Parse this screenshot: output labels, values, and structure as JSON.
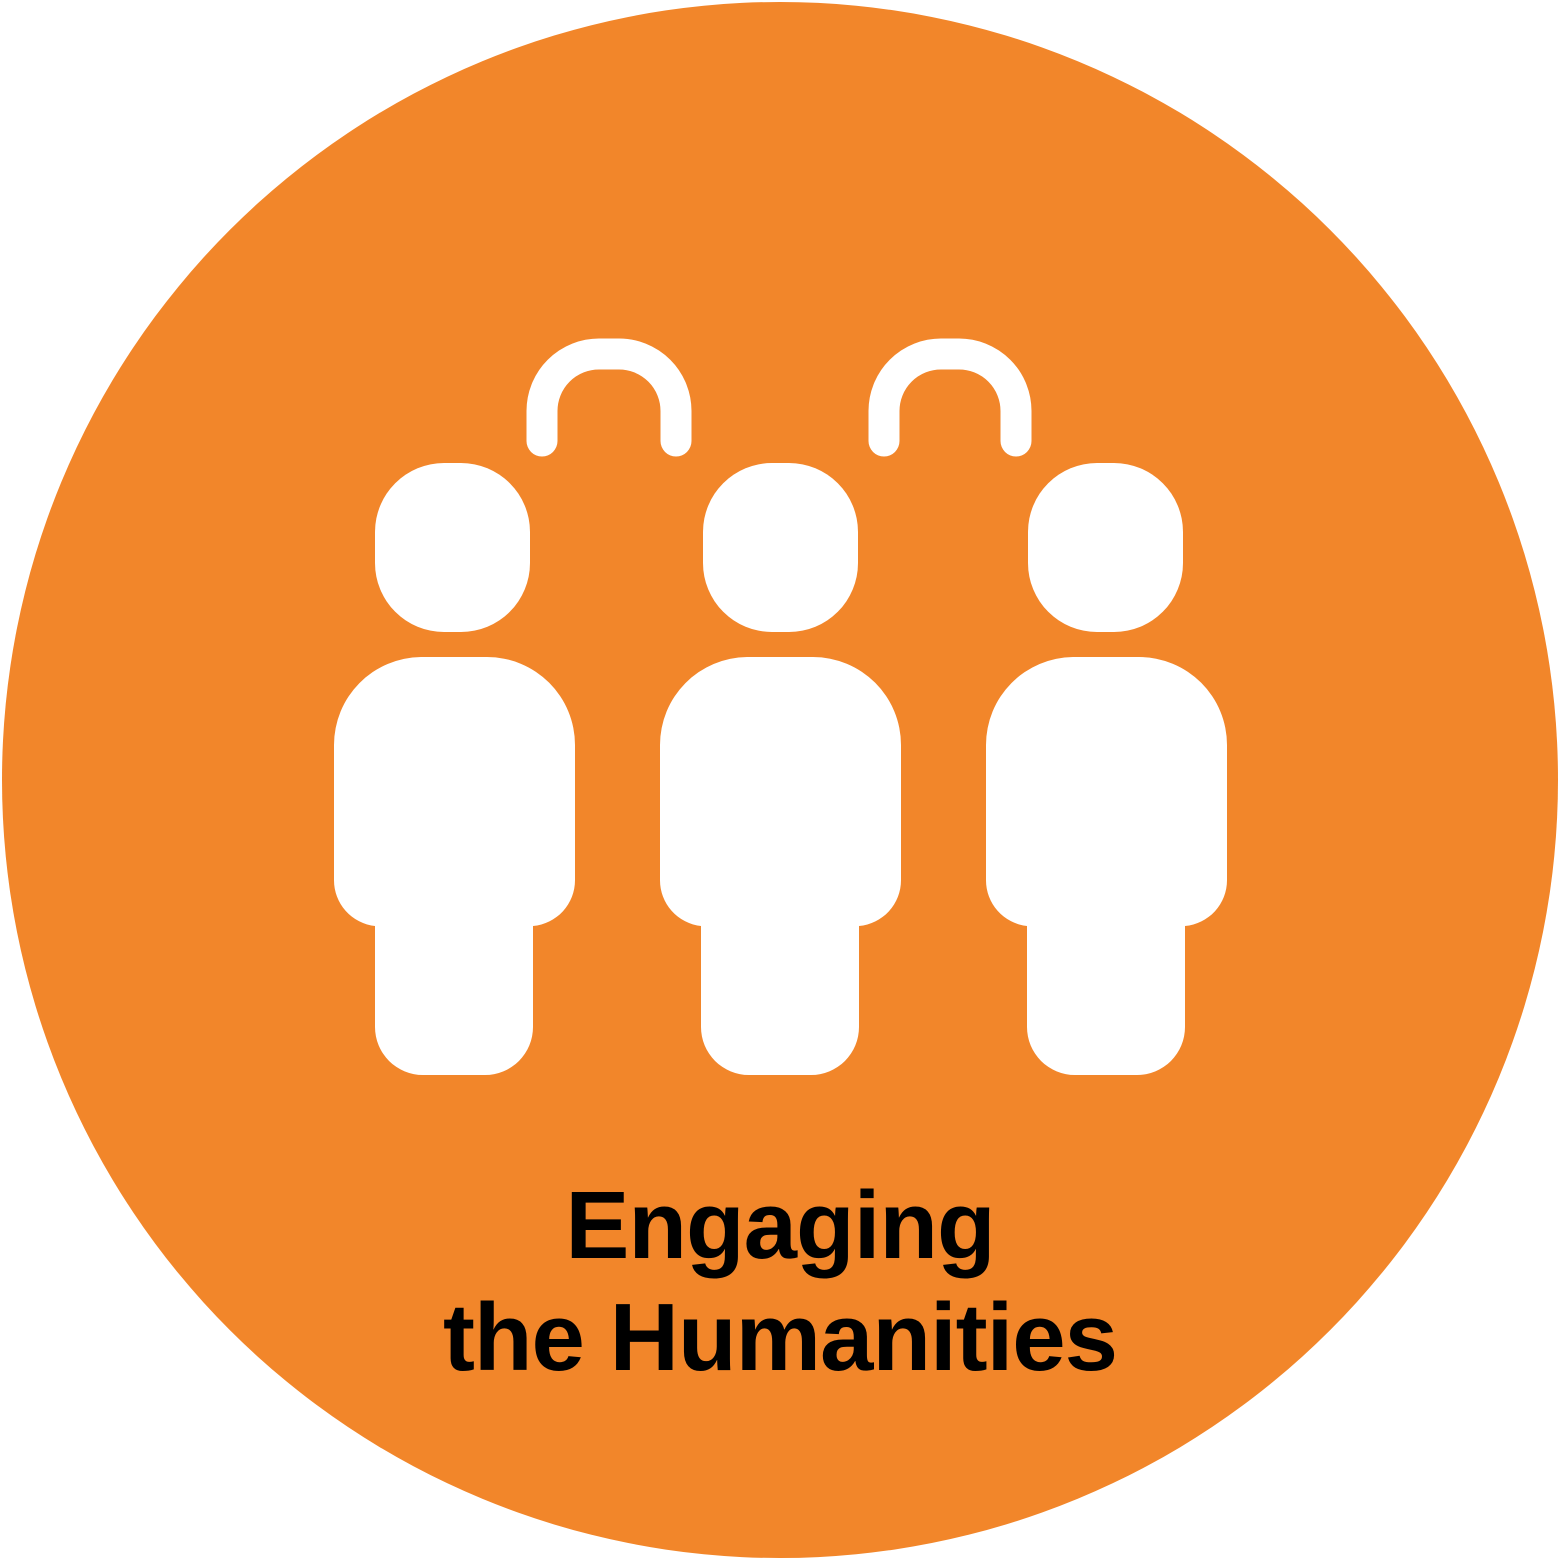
{
  "colors": {
    "badge_fill": "#F2862A",
    "figure_fill": "#FFFFFF",
    "caption_text": "#000000"
  },
  "icon": {
    "name": "three-people-connected-icon",
    "people_count": 3,
    "connector_count": 2
  },
  "caption": {
    "line1": "Engaging",
    "line2": "the Humanities"
  }
}
